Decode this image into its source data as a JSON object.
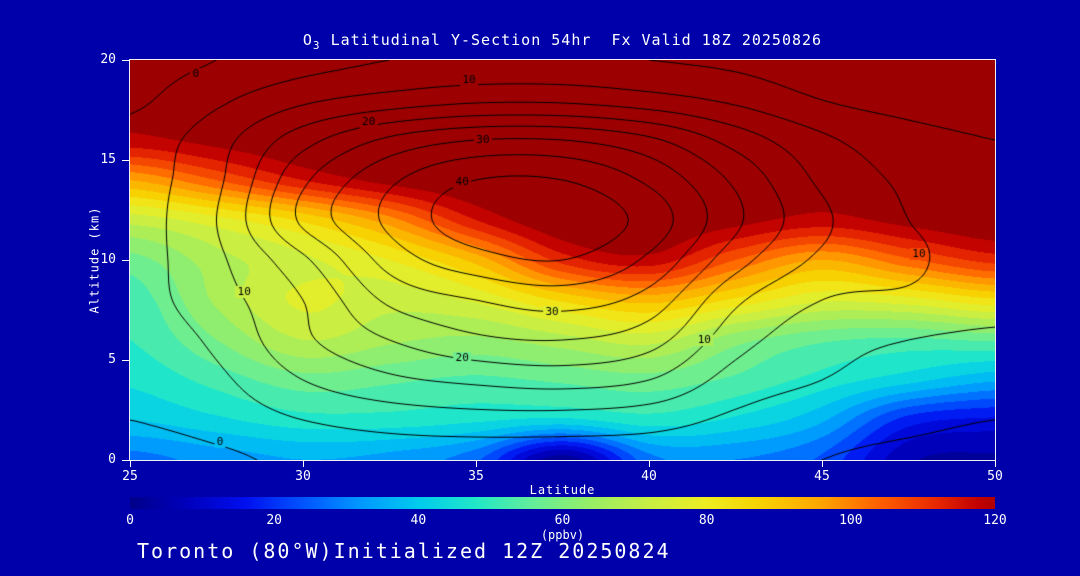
{
  "title": {
    "prefix": "O",
    "sub": "3",
    "rest": " Latitudinal Y-Section 54hr  Fx Valid 18Z 20250826"
  },
  "footer": "Toronto (80°W)Initialized 12Z 20250824",
  "axes": {
    "x": {
      "label": "Latitude",
      "ticks": [
        25,
        30,
        35,
        40,
        45,
        50
      ],
      "range": [
        25,
        50
      ]
    },
    "y": {
      "label": "Altitude (km)",
      "ticks": [
        0,
        5,
        10,
        15,
        20
      ],
      "range": [
        0,
        20
      ]
    }
  },
  "colorbar": {
    "ticks": [
      0,
      20,
      40,
      60,
      80,
      100,
      120
    ],
    "unit": "(ppbv)",
    "range": [
      0,
      120
    ]
  },
  "colors": {
    "background": "#0000AA",
    "frame": "#F0F0F0",
    "text": "#FFFFFF",
    "contour": "#000000",
    "stops": [
      [
        0,
        "#00008B"
      ],
      [
        8,
        "#0000BE"
      ],
      [
        16,
        "#0010F0"
      ],
      [
        24,
        "#0055FF"
      ],
      [
        32,
        "#0099FF"
      ],
      [
        40,
        "#00CCEE"
      ],
      [
        48,
        "#22E8C8"
      ],
      [
        56,
        "#66EE99"
      ],
      [
        64,
        "#99EE66"
      ],
      [
        72,
        "#C8EE44"
      ],
      [
        80,
        "#EEEE22"
      ],
      [
        88,
        "#F8D000"
      ],
      [
        96,
        "#FFA500"
      ],
      [
        104,
        "#FF6000"
      ],
      [
        112,
        "#E82800"
      ],
      [
        118,
        "#C00000"
      ],
      [
        125,
        "#8B0000"
      ]
    ]
  },
  "chart_data": {
    "type": "heatmap",
    "title": "O3 Latitudinal Y-Section 54hr Fx Valid 18Z 20250826",
    "xlabel": "Latitude",
    "ylabel": "Altitude (km)",
    "fill_units": "ppbv",
    "fill_range": [
      0,
      120
    ],
    "x_latitude": [
      25,
      27.5,
      30,
      32.5,
      35,
      37.5,
      40,
      42.5,
      45,
      47.5,
      50
    ],
    "y_altitude_km": [
      0,
      2,
      4,
      6,
      8,
      10,
      12,
      14,
      16,
      18,
      20
    ],
    "ozone_ppbv": [
      [
        28,
        32,
        35,
        33,
        26,
        2,
        28,
        30,
        24,
        6,
        4
      ],
      [
        40,
        44,
        48,
        48,
        46,
        44,
        48,
        44,
        36,
        18,
        14
      ],
      [
        46,
        52,
        58,
        56,
        54,
        56,
        58,
        54,
        48,
        42,
        36
      ],
      [
        50,
        60,
        70,
        66,
        64,
        68,
        72,
        62,
        56,
        54,
        56
      ],
      [
        52,
        66,
        76,
        72,
        76,
        86,
        92,
        84,
        76,
        78,
        84
      ],
      [
        58,
        68,
        74,
        80,
        92,
        112,
        118,
        105,
        95,
        104,
        112
      ],
      [
        72,
        78,
        86,
        98,
        115,
        125,
        125,
        122,
        118,
        122,
        125
      ],
      [
        95,
        105,
        115,
        122,
        125,
        125,
        125,
        125,
        122,
        125,
        125
      ],
      [
        118,
        122,
        125,
        125,
        125,
        125,
        125,
        125,
        125,
        125,
        125
      ],
      [
        122,
        125,
        125,
        125,
        125,
        125,
        125,
        125,
        125,
        125,
        125
      ],
      [
        125,
        125,
        125,
        125,
        125,
        125,
        125,
        125,
        125,
        125,
        125
      ]
    ],
    "contour_field": [
      [
        -3,
        -1,
        1,
        2,
        2,
        2,
        2,
        1,
        0,
        -1,
        -2
      ],
      [
        0,
        2,
        5,
        7,
        8,
        8,
        7,
        4,
        2,
        1,
        0
      ],
      [
        1,
        4,
        10,
        14,
        16,
        17,
        15,
        8,
        5,
        3,
        2
      ],
      [
        2,
        6,
        14,
        20,
        24,
        25,
        22,
        12,
        7,
        5,
        4
      ],
      [
        3,
        8,
        15,
        26,
        30,
        32,
        28,
        16,
        10,
        9,
        7
      ],
      [
        3,
        9,
        19,
        32,
        38,
        40,
        34,
        22,
        14,
        11,
        7
      ],
      [
        3,
        10,
        26,
        36,
        43,
        44,
        38,
        26,
        16,
        10,
        8
      ],
      [
        3,
        9,
        24,
        34,
        40,
        40,
        34,
        24,
        14,
        9,
        6
      ],
      [
        2,
        8,
        18,
        26,
        30,
        30,
        26,
        18,
        11,
        7,
        5
      ],
      [
        -1,
        4,
        9,
        12,
        14,
        14,
        12,
        9,
        5,
        3,
        2
      ],
      [
        -2,
        0,
        3,
        5,
        6,
        6,
        5,
        4,
        2,
        1,
        0
      ]
    ],
    "contour_levels": [
      0,
      5,
      10,
      15,
      20,
      25,
      30,
      35,
      40
    ],
    "contour_labels": [
      {
        "value": "0",
        "lat": 26.9,
        "alt": 19.3
      },
      {
        "value": "10",
        "lat": 34.8,
        "alt": 19.0
      },
      {
        "value": "20",
        "lat": 31.9,
        "alt": 16.9
      },
      {
        "value": "30",
        "lat": 35.2,
        "alt": 16.0
      },
      {
        "value": "40",
        "lat": 34.6,
        "alt": 13.9
      },
      {
        "value": "30",
        "lat": 37.2,
        "alt": 7.4
      },
      {
        "value": "20",
        "lat": 34.6,
        "alt": 5.1
      },
      {
        "value": "10",
        "lat": 28.3,
        "alt": 8.4
      },
      {
        "value": "10",
        "lat": 41.6,
        "alt": 6.0
      },
      {
        "value": "0",
        "lat": 27.6,
        "alt": 0.9
      },
      {
        "value": "10",
        "lat": 47.8,
        "alt": 10.3
      }
    ]
  }
}
